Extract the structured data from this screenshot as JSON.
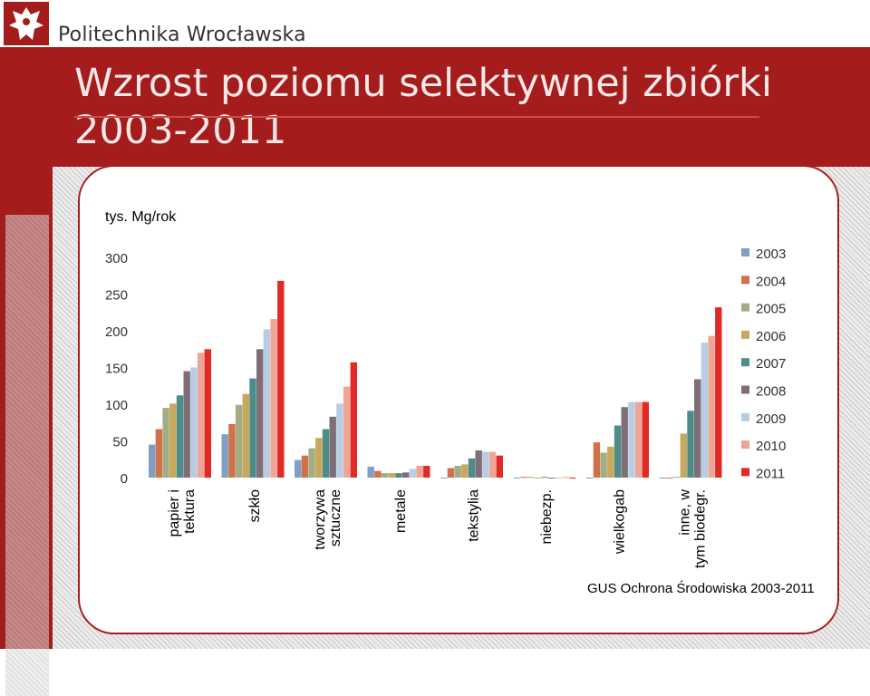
{
  "header": {
    "org_name": "Politechnika Wrocławska",
    "title": "Wzrost poziomu selektywnej zbiórki 2003-2011",
    "brand_color": "#a51c1c"
  },
  "source_note": "GUS Ochrona Środowiska 2003-2011",
  "chart_data": {
    "type": "bar",
    "unit_label": "tys. Mg/rok",
    "ylim": [
      0,
      300
    ],
    "yticks": [
      0,
      50,
      100,
      150,
      200,
      250,
      300
    ],
    "grid": false,
    "legend_position": "right",
    "categories": [
      "papier i tektura",
      "szkło",
      "tworzywa sztuczne",
      "metale",
      "tekstylia",
      "niebezp.",
      "wielkogab",
      "inne, w tym biodegr."
    ],
    "series": [
      {
        "name": "2003",
        "color": "#7f9fc4",
        "values": [
          45,
          59,
          24,
          15,
          0,
          0,
          0,
          0
        ]
      },
      {
        "name": "2004",
        "color": "#d0714a",
        "values": [
          66,
          73,
          30,
          9,
          13,
          1,
          48,
          0
        ]
      },
      {
        "name": "2005",
        "color": "#a3ad82",
        "values": [
          95,
          99,
          40,
          6,
          16,
          1,
          34,
          1
        ]
      },
      {
        "name": "2006",
        "color": "#c8a85d",
        "values": [
          101,
          114,
          54,
          6,
          18,
          0,
          42,
          60
        ]
      },
      {
        "name": "2007",
        "color": "#4d8c88",
        "values": [
          112,
          135,
          66,
          6,
          26,
          1,
          71,
          91
        ]
      },
      {
        "name": "2008",
        "color": "#7f6e78",
        "values": [
          145,
          175,
          83,
          7,
          37,
          0,
          96,
          134
        ]
      },
      {
        "name": "2009",
        "color": "#b6cde3",
        "values": [
          150,
          202,
          101,
          12,
          35,
          0,
          103,
          184
        ]
      },
      {
        "name": "2010",
        "color": "#efa596",
        "values": [
          170,
          216,
          124,
          16,
          35,
          1,
          103,
          193
        ]
      },
      {
        "name": "2011",
        "color": "#e12a25",
        "values": [
          175,
          268,
          157,
          16,
          30,
          0,
          103,
          232
        ]
      }
    ]
  }
}
